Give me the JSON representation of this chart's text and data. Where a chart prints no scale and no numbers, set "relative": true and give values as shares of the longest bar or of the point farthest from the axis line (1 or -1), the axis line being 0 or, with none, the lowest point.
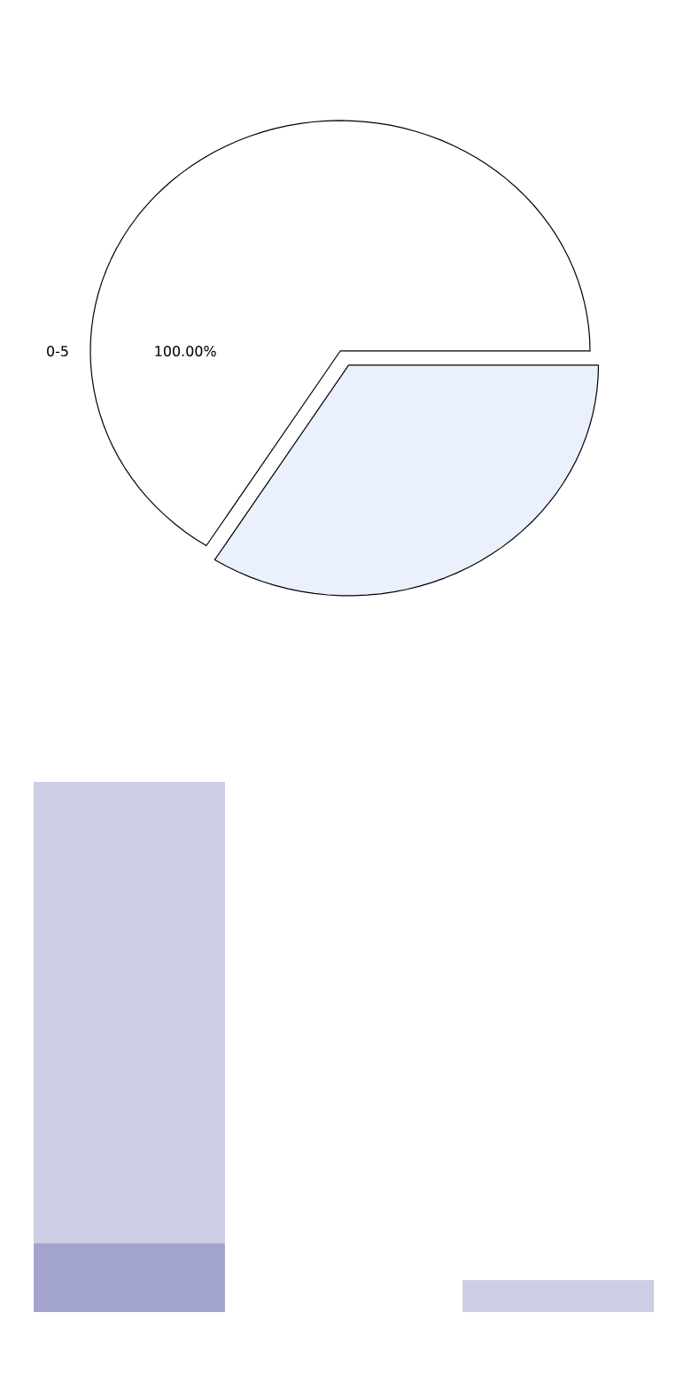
{
  "chart_data": [
    {
      "type": "pie",
      "categories": [
        "0-5",
        null
      ],
      "values": [
        66,
        34
      ],
      "colors": [
        "#ffffff",
        "#eaf0fc"
      ],
      "annotations": [
        "100.00%"
      ]
    },
    {
      "type": "bar",
      "stacked": true,
      "relative": true,
      "categories": [
        null,
        null
      ],
      "series": [
        {
          "color": "#a3a3d0",
          "values": [
            0.13,
            null
          ]
        },
        {
          "color": "#cdcde5",
          "values": [
            0.87,
            0.06
          ]
        }
      ]
    }
  ]
}
